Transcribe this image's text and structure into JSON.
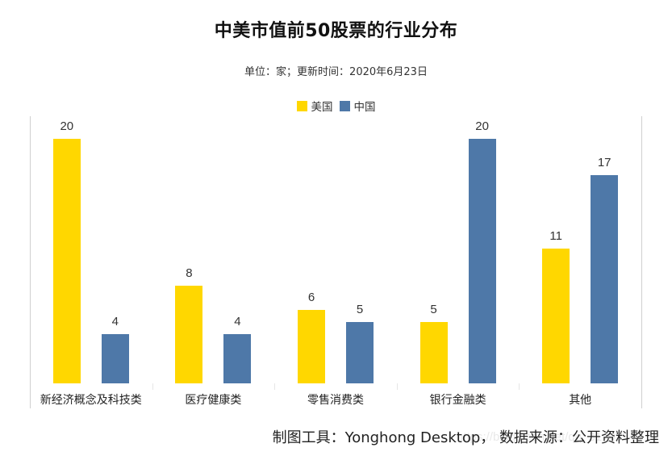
{
  "header": {
    "title": "中美市值前50股票的行业分布",
    "subtitle": "单位：家；更新时间：2020年6月23日"
  },
  "legend": {
    "items": [
      {
        "label": "美国",
        "color": "#FFD700"
      },
      {
        "label": "中国",
        "color": "#4E78A8"
      }
    ]
  },
  "footer": {
    "source": "制图工具：Yonghong Desktop， 数据来源：公开资料整理",
    "watermark": "https://blog.csdn.net/qq_31703543"
  },
  "chart_data": {
    "type": "bar",
    "title": "中美市值前50股票的行业分布",
    "subtitle": "单位：家；更新时间：2020年6月23日",
    "categories": [
      "新经济概念及科技类",
      "医疗健康类",
      "零售消费类",
      "银行金融类",
      "其他"
    ],
    "series": [
      {
        "name": "美国",
        "color": "#FFD700",
        "values": [
          20,
          8,
          6,
          5,
          11
        ]
      },
      {
        "name": "中国",
        "color": "#4E78A8",
        "values": [
          4,
          4,
          5,
          20,
          17
        ]
      }
    ],
    "xlabel": "",
    "ylabel": "",
    "ylim": [
      0,
      22
    ],
    "grid": false,
    "legend_position": "top",
    "data_labels": true
  }
}
